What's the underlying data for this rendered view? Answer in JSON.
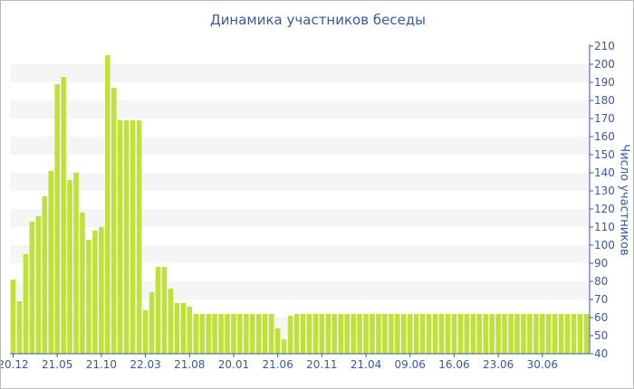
{
  "chart_data": {
    "type": "bar",
    "title": "Динамика участников беседы",
    "xlabel": "",
    "ylabel": "Число участников",
    "ylim": [
      40,
      210
    ],
    "y_ticks": [
      40,
      50,
      60,
      70,
      80,
      90,
      100,
      110,
      120,
      130,
      140,
      150,
      160,
      170,
      180,
      190,
      200,
      210
    ],
    "x_tick_labels": [
      {
        "label": "20.12",
        "index": 0
      },
      {
        "label": "21.05",
        "index": 7
      },
      {
        "label": "21.10",
        "index": 14
      },
      {
        "label": "22.03",
        "index": 21
      },
      {
        "label": "21.08",
        "index": 28
      },
      {
        "label": "20.01",
        "index": 35
      },
      {
        "label": "21.06",
        "index": 42
      },
      {
        "label": "20.11",
        "index": 49
      },
      {
        "label": "21.04",
        "index": 56
      },
      {
        "label": "09.06",
        "index": 63
      },
      {
        "label": "16.06",
        "index": 70
      },
      {
        "label": "23.06",
        "index": 77
      },
      {
        "label": "30.06",
        "index": 84
      }
    ],
    "values": [
      81,
      69,
      95,
      113,
      116,
      127,
      141,
      189,
      193,
      136,
      140,
      118,
      103,
      108,
      110,
      205,
      187,
      169,
      169,
      169,
      169,
      64,
      74,
      88,
      88,
      76,
      68,
      68,
      66,
      62,
      62,
      62,
      62,
      62,
      62,
      62,
      62,
      62,
      62,
      62,
      62,
      62,
      54,
      48,
      61,
      62,
      62,
      62,
      62,
      62,
      62,
      62,
      62,
      62,
      62,
      62,
      62,
      62,
      62,
      62,
      62,
      62,
      62,
      62,
      62,
      62,
      62,
      62,
      62,
      62,
      62,
      62,
      62,
      62,
      62,
      62,
      62,
      62,
      62,
      62,
      62,
      62,
      62,
      62,
      62,
      62,
      62,
      62,
      62,
      62,
      62,
      62
    ],
    "grid": "alternating horizontal bands",
    "bar_color": "#bfe23a",
    "band_color": "#f5f5f5",
    "axis_color": "#3a5a9a"
  }
}
